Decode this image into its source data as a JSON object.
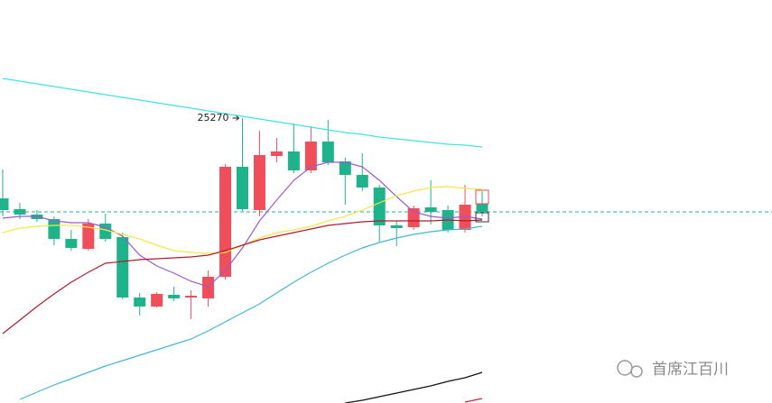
{
  "chart_data": {
    "type": "candlestick",
    "up_color": "#ef4f5a",
    "down_color": "#1fb38c",
    "ylim": [
      24954,
      25401
    ],
    "open": [
      25181,
      25169,
      25163,
      25158,
      25136,
      25125,
      25153,
      25138,
      25071,
      25061,
      25074,
      25071,
      25070,
      25094,
      25216,
      25168,
      25228,
      25233,
      25212,
      25244,
      25222,
      25207,
      25193,
      25151,
      25149,
      25171,
      25168,
      25146,
      25175
    ],
    "high": [
      25213,
      25176,
      25168,
      25161,
      25146,
      25158,
      25164,
      25143,
      25076,
      25077,
      25083,
      25079,
      25101,
      25219,
      25270,
      25256,
      25248,
      25264,
      25261,
      25268,
      25226,
      25231,
      25196,
      25156,
      25173,
      25201,
      25173,
      25196,
      25189
    ],
    "low": [
      25161,
      25158,
      25155,
      25129,
      25123,
      25123,
      25133,
      25069,
      25051,
      25060,
      25067,
      25047,
      25061,
      25091,
      25167,
      25161,
      25221,
      25209,
      25209,
      25218,
      25174,
      25189,
      25133,
      25128,
      25146,
      25152,
      25143,
      25143,
      25161
    ],
    "close": [
      25168,
      25163,
      25158,
      25136,
      25126,
      25153,
      25136,
      25071,
      25061,
      25075,
      25070,
      25073,
      25094,
      25216,
      25169,
      25229,
      25233,
      25212,
      25244,
      25221,
      25207,
      25193,
      25151,
      25148,
      25170,
      25166,
      25146,
      25174,
      25166
    ],
    "series": [
      {
        "color": "#3fe3e3",
        "values": [
          25314,
          25311,
          25308,
          25305,
          25302,
          25299,
          25296,
          25293,
          25290,
          25287,
          25284,
          25281,
          25278,
          25275,
          25272,
          25269,
          25266,
          25263,
          25260,
          25257,
          25254,
          25252,
          25249,
          25247,
          25245,
          25243,
          25241,
          25240,
          25238
        ]
      },
      {
        "color": "#9b59d0",
        "values": [
          25159,
          25161,
          25161,
          25156,
          25154,
          25154,
          25149,
          25139,
          25118,
          25106,
          25098,
          25089,
          25083,
          25101,
          25126,
          25156,
          25179,
          25201,
          25216,
          25221,
          25221,
          25216,
          25201,
          25183,
          25166,
          25161,
          25159,
          25161,
          25158
        ]
      },
      {
        "color": "#f5e64a",
        "values": [
          25143,
          25148,
          25150,
          25151,
          25151,
          25149,
          25146,
          25141,
          25136,
          25129,
          25123,
          25121,
          25120,
          25121,
          25129,
          25137,
          25143,
          25146,
          25150,
          25156,
          25161,
          25168,
          25176,
          25184,
          25189,
          25193,
          25194,
          25192,
          25191
        ]
      },
      {
        "color": "#b01c2e",
        "values": [
          25031,
          25046,
          25061,
          25075,
          25088,
          25099,
          25109,
          25111,
          25113,
          25114,
          25115,
          25116,
          25118,
          25123,
          25129,
          25135,
          25139,
          25143,
          25147,
          25151,
          25153,
          25155,
          25156,
          25156,
          25156,
          25156,
          25157,
          25156,
          25157
        ]
      },
      {
        "color": "#45b6d6",
        "values": [
          null,
          24958,
          24966,
          24974,
          24981,
          24988,
          24995,
          25001,
          25007,
          25013,
          25019,
          25025,
          25034,
          25044,
          25054,
          25064,
          25076,
          25088,
          25099,
          25109,
          25118,
          25126,
          25132,
          25137,
          25141,
          25144,
          25146,
          25147,
          25150
        ]
      },
      {
        "color": "#111111",
        "values": [
          null,
          null,
          null,
          null,
          null,
          null,
          null,
          null,
          null,
          null,
          null,
          null,
          null,
          null,
          null,
          null,
          null,
          null,
          null,
          null,
          24954,
          24957,
          24961,
          24965,
          24969,
          24973,
          24978,
          24982,
          24988
        ]
      },
      {
        "color": "#d0243a",
        "values": [
          null,
          null,
          null,
          null,
          null,
          null,
          null,
          null,
          null,
          null,
          null,
          null,
          null,
          null,
          null,
          null,
          null,
          null,
          null,
          null,
          null,
          null,
          null,
          null,
          null,
          null,
          null,
          24955,
          24959
        ]
      }
    ],
    "price_line": 25166,
    "annotation": "25270",
    "watermark": "首席江百川"
  }
}
